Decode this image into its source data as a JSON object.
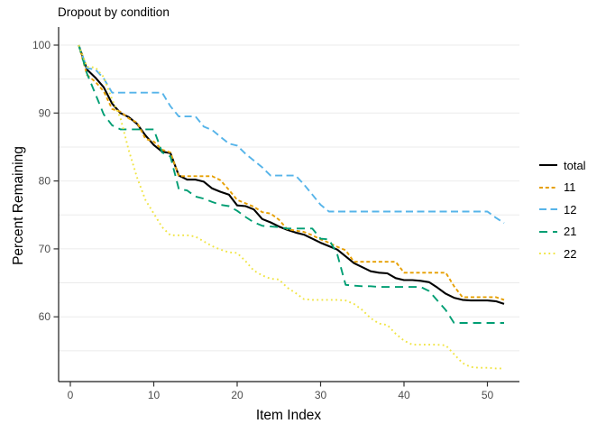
{
  "title": "Dropout by condition",
  "axes": {
    "x": {
      "label": "Item Index",
      "ticks": [
        0,
        10,
        20,
        30,
        40,
        50
      ]
    },
    "y": {
      "label": "Percent Remaining",
      "ticks": [
        100,
        90,
        80,
        70,
        60
      ]
    }
  },
  "grid": {
    "color": "#EBEBEB",
    "values": [
      55,
      60,
      65,
      70,
      75,
      80,
      85,
      90,
      95,
      100
    ]
  },
  "chart_data": {
    "type": "line",
    "title": "Dropout by condition",
    "xlabel": "Item Index",
    "ylabel": "Percent Remaining",
    "xlim": [
      0,
      54
    ],
    "ylim": [
      50,
      102
    ],
    "grid": "horizontal-only",
    "legend_position": "right",
    "x": [
      1,
      2,
      3,
      4,
      5,
      6,
      7,
      8,
      9,
      10,
      11,
      12,
      13,
      14,
      15,
      16,
      17,
      18,
      19,
      20,
      21,
      22,
      23,
      24,
      25,
      26,
      27,
      28,
      29,
      30,
      31,
      32,
      33,
      34,
      35,
      36,
      37,
      38,
      39,
      40,
      41,
      42,
      43,
      44,
      45,
      46,
      47,
      48,
      49,
      50,
      51,
      52
    ],
    "series": [
      {
        "name": "total",
        "color": "#000000",
        "dash": "solid",
        "values": [
          100,
          96.4,
          95.2,
          93.8,
          91.4,
          90.0,
          89.4,
          88.4,
          86.7,
          85.3,
          84.3,
          84.1,
          80.8,
          80.2,
          80.2,
          79.9,
          78.9,
          78.4,
          78.0,
          76.4,
          76.3,
          75.8,
          74.4,
          73.9,
          73.3,
          72.8,
          72.4,
          72.1,
          71.5,
          70.9,
          70.4,
          69.9,
          68.9,
          67.9,
          67.3,
          66.7,
          66.5,
          66.4,
          65.7,
          65.4,
          65.4,
          65.3,
          65.1,
          64.3,
          63.4,
          62.8,
          62.5,
          62.4,
          62.4,
          62.4,
          62.3,
          61.9
        ]
      },
      {
        "name": "11",
        "color": "#E69F00",
        "dash": "dashed",
        "values": [
          100,
          95.6,
          94.6,
          93.2,
          90.6,
          90.2,
          89.2,
          88.6,
          86.2,
          85.8,
          84.6,
          84.2,
          80.7,
          80.7,
          80.7,
          80.7,
          80.7,
          80.1,
          78.7,
          77.2,
          76.7,
          76.2,
          75.4,
          75.2,
          74.3,
          72.9,
          72.7,
          72.5,
          72.0,
          71.4,
          70.9,
          70.3,
          69.8,
          68.1,
          68.1,
          68.1,
          68.1,
          68.1,
          68.1,
          66.5,
          66.5,
          66.5,
          66.5,
          66.5,
          66.5,
          64.5,
          62.9,
          62.9,
          62.9,
          62.9,
          62.9,
          62.5
        ]
      },
      {
        "name": "12",
        "color": "#56B4E9",
        "dash": "mediumdash",
        "values": [
          100,
          96.6,
          96.4,
          95.1,
          93.0,
          93.0,
          93.0,
          93.0,
          93.0,
          93.0,
          93.0,
          91.0,
          89.5,
          89.5,
          89.5,
          88.0,
          87.5,
          86.5,
          85.5,
          85.2,
          84.0,
          83.0,
          82.0,
          80.8,
          80.8,
          80.8,
          80.8,
          79.5,
          78.0,
          76.5,
          75.5,
          75.5,
          75.5,
          75.5,
          75.5,
          75.5,
          75.5,
          75.5,
          75.5,
          75.5,
          75.5,
          75.5,
          75.5,
          75.5,
          75.5,
          75.5,
          75.5,
          75.5,
          75.5,
          75.5,
          74.6,
          73.8
        ]
      },
      {
        "name": "21",
        "color": "#009E73",
        "dash": "longdash",
        "values": [
          100,
          95.8,
          92.8,
          89.8,
          88.2,
          87.6,
          87.6,
          87.6,
          87.6,
          87.6,
          84.2,
          83.6,
          78.8,
          78.6,
          77.7,
          77.4,
          76.9,
          76.5,
          76.3,
          75.6,
          74.7,
          73.9,
          73.4,
          73.3,
          73.2,
          73.0,
          73.0,
          73.0,
          73.0,
          71.5,
          71.4,
          69.2,
          64.7,
          64.6,
          64.5,
          64.5,
          64.4,
          64.4,
          64.4,
          64.4,
          64.4,
          64.4,
          63.8,
          62.4,
          61.0,
          59.1,
          59.1,
          59.1,
          59.1,
          59.1,
          59.1,
          59.1
        ]
      },
      {
        "name": "22",
        "color": "#F0E442",
        "dash": "dotted",
        "values": [
          100,
          96.8,
          96.7,
          95.3,
          92.0,
          89.3,
          84.5,
          80.5,
          77.2,
          75.2,
          73.2,
          72.0,
          72.0,
          72.0,
          71.8,
          71.1,
          70.4,
          69.9,
          69.5,
          69.4,
          68.2,
          66.8,
          66.1,
          65.6,
          65.5,
          64.3,
          63.5,
          62.6,
          62.5,
          62.5,
          62.5,
          62.5,
          62.4,
          61.9,
          61.0,
          59.8,
          59.0,
          58.8,
          57.5,
          56.5,
          55.9,
          55.9,
          55.9,
          55.9,
          55.8,
          54.5,
          53.2,
          52.6,
          52.5,
          52.5,
          52.4,
          52.4
        ]
      }
    ]
  }
}
